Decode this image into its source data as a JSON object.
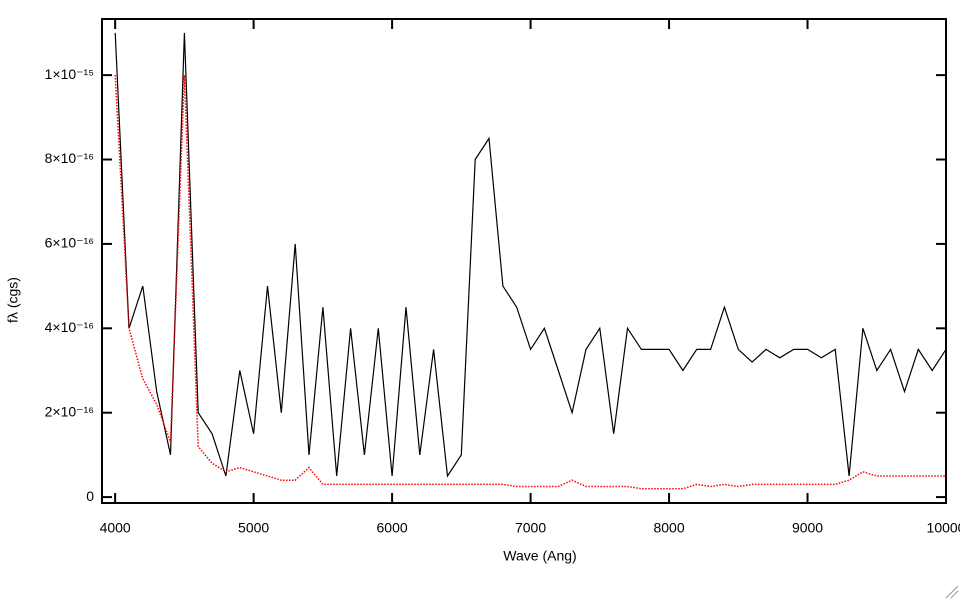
{
  "chart_data": {
    "type": "line",
    "x_label": "Wave (Ang)",
    "y_label": "fλ (cgs)",
    "xlim": [
      3905,
      10000
    ],
    "ylim": [
      -1.4e-17,
      1.133e-15
    ],
    "xticks": [
      4000,
      5000,
      6000,
      7000,
      8000,
      9000,
      10000
    ],
    "yticks": [
      0,
      {
        "value": 2e-16,
        "label": "2×10⁻¹⁶"
      },
      {
        "value": 4e-16,
        "label": "4×10⁻¹⁶"
      },
      {
        "value": 6e-16,
        "label": "6×10⁻¹⁶"
      },
      {
        "value": 8e-16,
        "label": "8×10⁻¹⁶"
      },
      {
        "value": 1e-15,
        "label": "1×10⁻¹⁵"
      }
    ],
    "x": [
      4000,
      4100,
      4200,
      4300,
      4400,
      4500,
      4600,
      4700,
      4800,
      4900,
      5000,
      5100,
      5200,
      5300,
      5400,
      5500,
      5600,
      5700,
      5800,
      5900,
      6000,
      6100,
      6200,
      6300,
      6400,
      6500,
      6600,
      6700,
      6800,
      6900,
      7000,
      7100,
      7200,
      7300,
      7400,
      7500,
      7600,
      7700,
      7800,
      7900,
      8000,
      8100,
      8200,
      8300,
      8400,
      8500,
      8600,
      8700,
      8800,
      8900,
      9000,
      9100,
      9200,
      9300,
      9400,
      9500,
      9600,
      9700,
      9800,
      9900,
      10000
    ],
    "series": [
      {
        "color": "#000000",
        "style": "solid",
        "values": [
          1.1e-15,
          4e-16,
          5e-16,
          2.5e-16,
          1e-16,
          1.1e-15,
          2e-16,
          1.5e-16,
          5e-17,
          3e-16,
          1.5e-16,
          5e-16,
          2e-16,
          6e-16,
          1e-16,
          4.5e-16,
          5e-17,
          4e-16,
          1e-16,
          4e-16,
          5e-17,
          4.5e-16,
          1e-16,
          3.5e-16,
          5e-17,
          1e-16,
          8e-16,
          8.5e-16,
          5e-16,
          4.5e-16,
          3.5e-16,
          4e-16,
          3e-16,
          2e-16,
          3.5e-16,
          4e-16,
          1.5e-16,
          4e-16,
          3.5e-16,
          3.5e-16,
          3.5e-16,
          3e-16,
          3.5e-16,
          3.5e-16,
          4.5e-16,
          3.5e-16,
          3.2e-16,
          3.5e-16,
          3.3e-16,
          3.5e-16,
          3.5e-16,
          3.3e-16,
          3.5e-16,
          5e-17,
          4e-16,
          3e-16,
          3.5e-16,
          2.5e-16,
          3.5e-16,
          3e-16,
          3.5e-16
        ]
      },
      {
        "color": "#ff0000",
        "style": "dotted",
        "values": [
          1e-15,
          4e-16,
          2.8e-16,
          2.2e-16,
          1.3e-16,
          1e-15,
          1.2e-16,
          8e-17,
          6e-17,
          7e-17,
          6e-17,
          5e-17,
          4e-17,
          4e-17,
          7e-17,
          3e-17,
          3e-17,
          3e-17,
          3e-17,
          3e-17,
          3e-17,
          3e-17,
          3e-17,
          3e-17,
          3e-17,
          3e-17,
          3e-17,
          3e-17,
          3e-17,
          2.5e-17,
          2.5e-17,
          2.5e-17,
          2.5e-17,
          4e-17,
          2.5e-17,
          2.5e-17,
          2.5e-17,
          2.5e-17,
          2e-17,
          2e-17,
          2e-17,
          2e-17,
          3e-17,
          2.5e-17,
          3e-17,
          2.5e-17,
          3e-17,
          3e-17,
          3e-17,
          3e-17,
          3e-17,
          3e-17,
          3e-17,
          4e-17,
          6e-17,
          5e-17,
          5e-17,
          5e-17,
          5e-17,
          5e-17,
          5e-17
        ]
      }
    ]
  }
}
